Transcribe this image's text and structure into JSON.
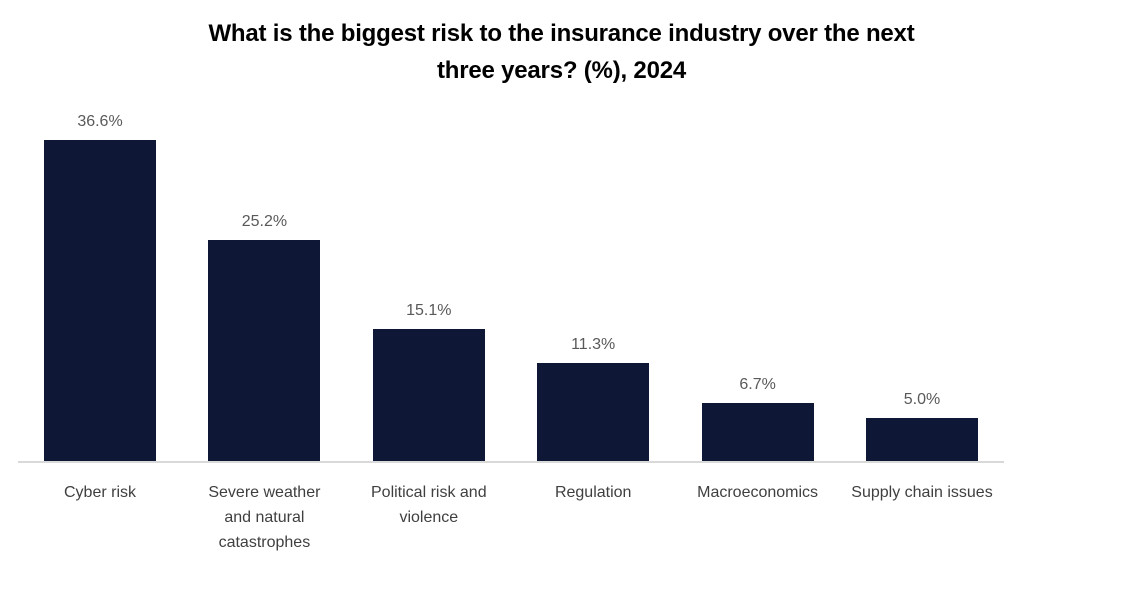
{
  "chart_data": {
    "type": "bar",
    "title": "What is the biggest risk to the insurance industry over the next three years? (%), 2024",
    "title_lines": [
      "What is the biggest risk to the insurance industry over the next",
      "three years? (%), 2024"
    ],
    "categories": [
      "Cyber risk",
      "Severe weather and natural catastrophes",
      "Political risk and violence",
      "Regulation",
      "Macroeconomics",
      "Supply chain issues"
    ],
    "category_lines": [
      [
        "Cyber risk"
      ],
      [
        "Severe weather",
        "and natural",
        "catastrophes"
      ],
      [
        "Political risk and",
        "violence"
      ],
      [
        "Regulation"
      ],
      [
        "Macroeconomics"
      ],
      [
        "Supply chain issues"
      ]
    ],
    "values": [
      36.6,
      25.2,
      15.1,
      11.3,
      6.7,
      5.0
    ],
    "data_labels": [
      "36.6%",
      "25.2%",
      "15.1%",
      "11.3%",
      "6.7%",
      "5.0%"
    ],
    "xlabel": "",
    "ylabel": "",
    "ylim": [
      0,
      40
    ],
    "grid": false,
    "legend": false,
    "colors": {
      "bar": "#0F1737",
      "data_label": "#595959",
      "category_label": "#3F3F3F",
      "title": "#000000",
      "axis_line": "#D9D9D9",
      "background": "#FFFFFF"
    }
  }
}
